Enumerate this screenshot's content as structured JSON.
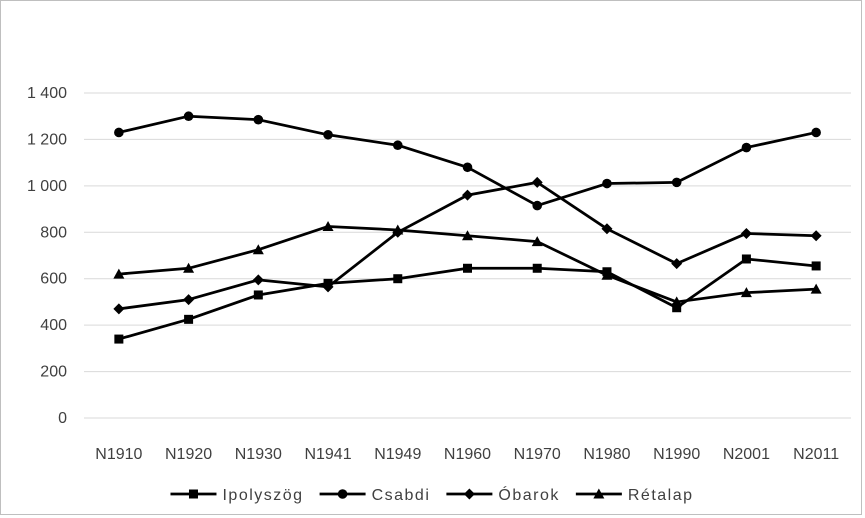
{
  "chart_data": {
    "type": "line",
    "title": "",
    "xlabel": "",
    "ylabel": "",
    "categories": [
      "N1910",
      "N1920",
      "N1930",
      "N1941",
      "N1949",
      "N1960",
      "N1970",
      "N1980",
      "N1990",
      "N2001",
      "N2011"
    ],
    "ylim": [
      0,
      1400
    ],
    "yticks": [
      0,
      200,
      400,
      600,
      800,
      1000,
      1200,
      1400
    ],
    "ytick_labels": [
      "0",
      "200",
      "400",
      "600",
      "800",
      "1 000",
      "1 200",
      "1 400"
    ],
    "grid": "horizontal",
    "legend_position": "bottom",
    "line_color": "#000000",
    "series": [
      {
        "name": "Ipolyszög",
        "marker": "square",
        "values": [
          340,
          425,
          530,
          580,
          600,
          645,
          645,
          630,
          475,
          685,
          655
        ]
      },
      {
        "name": "Csabdi",
        "marker": "circle",
        "values": [
          1230,
          1300,
          1285,
          1220,
          1175,
          1080,
          915,
          1010,
          1015,
          1165,
          1230
        ]
      },
      {
        "name": "Óbarok",
        "marker": "diamond",
        "values": [
          470,
          510,
          595,
          565,
          800,
          960,
          1015,
          815,
          665,
          795,
          785
        ]
      },
      {
        "name": "Rétalap",
        "marker": "triangle",
        "values": [
          620,
          645,
          725,
          825,
          810,
          785,
          760,
          615,
          500,
          540,
          555
        ]
      }
    ]
  }
}
